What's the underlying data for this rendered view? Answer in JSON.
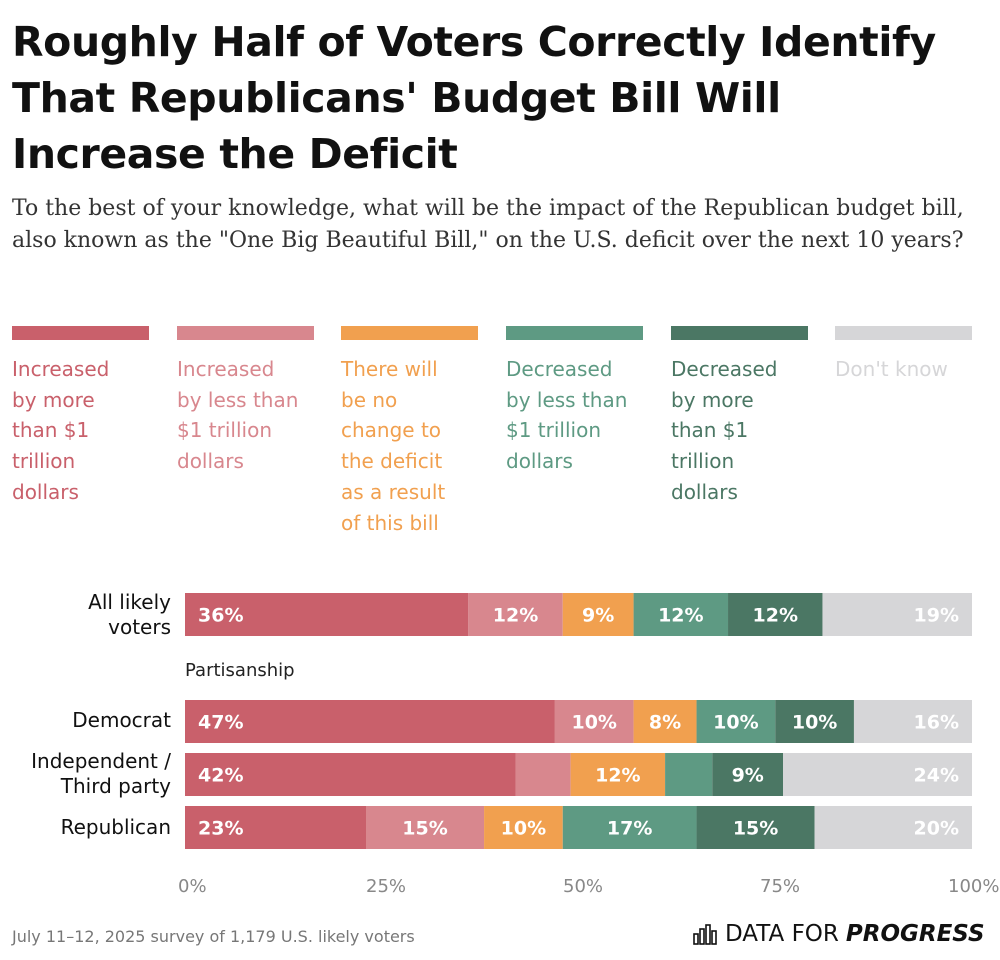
{
  "header": {
    "title": "Roughly Half of Voters Correctly Identify That Republicans' Budget Bill Will Increase the Deficit",
    "subtitle": "To the best of your knowledge, what will be the impact of the Republican budget bill, also known as the \"One Big Beautiful Bill,\" on the U.S. deficit over the next 10 years?"
  },
  "chart_data": {
    "type": "bar",
    "orientation": "horizontal",
    "stacked": true,
    "xlim": [
      0,
      100
    ],
    "x_ticks": [
      "0%",
      "25%",
      "50%",
      "75%",
      "100%"
    ],
    "group_label": "Partisanship",
    "series": [
      {
        "name": "Increased by more than $1 trillion dollars",
        "color": "#c9606b"
      },
      {
        "name": "Increased by less than $1 trillion dollars",
        "color": "#d8878e"
      },
      {
        "name": "There will be no change to the deficit as a result of this bill",
        "color": "#f1a04f"
      },
      {
        "name": "Decreased by less than $1 trillion dollars",
        "color": "#5e9a83"
      },
      {
        "name": "Decreased by more than $1 trillion dollars",
        "color": "#4b7764"
      },
      {
        "name": "Don't know",
        "color": "#d6d6d8"
      }
    ],
    "rows": [
      {
        "category": "All likely voters",
        "values": [
          36,
          12,
          9,
          12,
          12,
          19
        ],
        "labels": [
          "36%",
          "12%",
          "9%",
          "12%",
          "12%",
          "19%"
        ]
      },
      {
        "category": "Democrat",
        "values": [
          47,
          10,
          8,
          10,
          10,
          16
        ],
        "labels": [
          "47%",
          "10%",
          "8%",
          "10%",
          "10%",
          "16%"
        ]
      },
      {
        "category": "Independent / Third party",
        "values": [
          42,
          7,
          12,
          6,
          9,
          24
        ],
        "labels": [
          "42%",
          "",
          "12%",
          "",
          "9%",
          "24%"
        ]
      },
      {
        "category": "Republican",
        "values": [
          23,
          15,
          10,
          17,
          15,
          20
        ],
        "labels": [
          "23%",
          "15%",
          "10%",
          "17%",
          "15%",
          "20%"
        ]
      }
    ]
  },
  "legend": [
    {
      "lines": [
        "Increased",
        "by more",
        "than $1",
        "trillion",
        "dollars"
      ]
    },
    {
      "lines": [
        "Increased",
        "by less than",
        "$1 trillion",
        "dollars"
      ]
    },
    {
      "lines": [
        "There will",
        "be no",
        "change to",
        "the deficit",
        "as a result",
        "of this bill"
      ]
    },
    {
      "lines": [
        "Decreased",
        "by less than",
        "$1 trillion",
        "dollars"
      ]
    },
    {
      "lines": [
        "Decreased",
        "by more",
        "than $1",
        "trillion",
        "dollars"
      ]
    },
    {
      "lines": [
        "Don't know"
      ]
    }
  ],
  "row_labels": [
    [
      "All likely",
      "voters"
    ],
    [
      "Democrat"
    ],
    [
      "Independent /",
      "Third party"
    ],
    [
      "Republican"
    ]
  ],
  "footer": {
    "note": "July 11–12, 2025 survey of 1,179 U.S. likely voters",
    "brand_light": "DATA FOR",
    "brand_strong": "PROGRESS"
  }
}
